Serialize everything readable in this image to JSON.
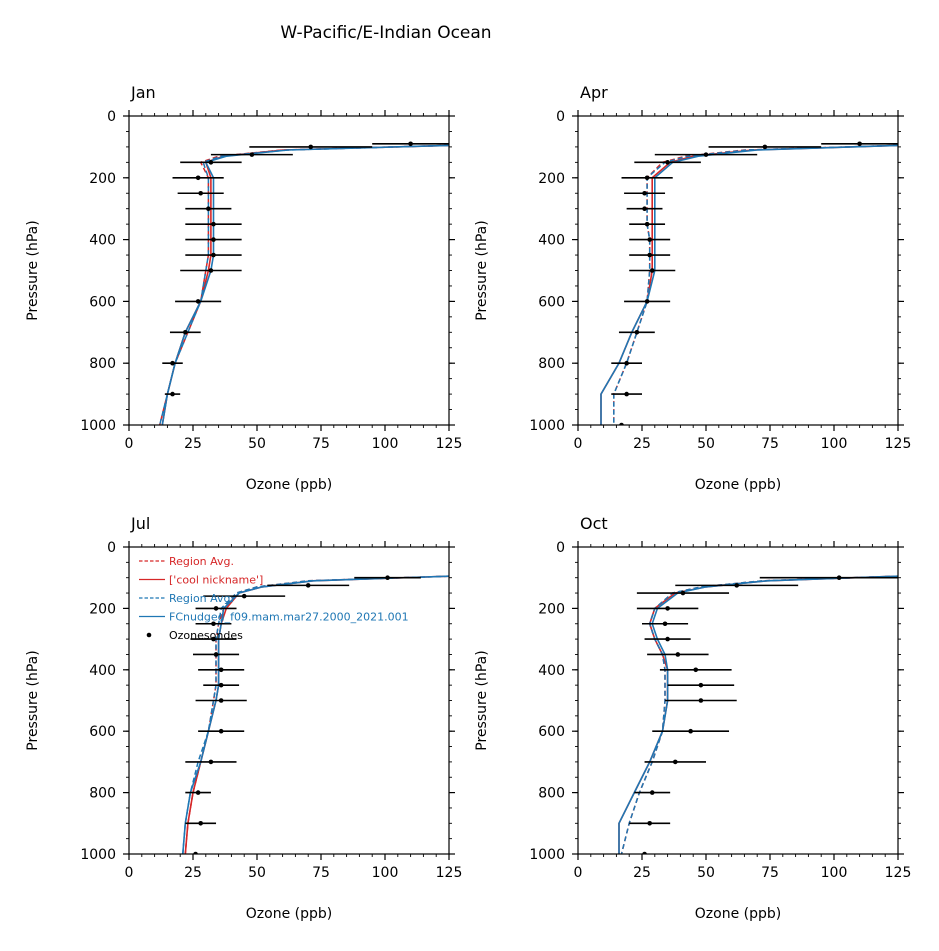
{
  "figure": {
    "title": "W-Pacific/E-Indian Ocean"
  },
  "colors": {
    "red": "#d62728",
    "blue": "#1f77b4",
    "black": "#000000"
  },
  "chart_data": [
    {
      "type": "line",
      "panel": "Jan",
      "title": "Jan",
      "xlabel": "Ozone (ppb)",
      "ylabel": "Pressure (hPa)",
      "xlim": [
        0,
        125
      ],
      "ylim": [
        1000,
        0
      ],
      "xticks": [
        "0",
        "25",
        "50",
        "75",
        "100",
        "125"
      ],
      "yticks": [
        "0",
        "200",
        "400",
        "600",
        "800",
        "1000"
      ],
      "series": [
        {
          "key": "red_dashed",
          "y": [
            95,
            110,
            130,
            150,
            200,
            250,
            300,
            350,
            400,
            450,
            500,
            600,
            700,
            800,
            900,
            1000
          ],
          "x": [
            125,
            60,
            35,
            28,
            31,
            31,
            31,
            31,
            31,
            31,
            30,
            28,
            23,
            18,
            15,
            12
          ]
        },
        {
          "key": "red_solid",
          "y": [
            95,
            110,
            130,
            150,
            200,
            250,
            300,
            350,
            400,
            450,
            500,
            600,
            700,
            800,
            900,
            1000
          ],
          "x": [
            125,
            60,
            37,
            30,
            32,
            32,
            32,
            32,
            32,
            32,
            31,
            28,
            22,
            18,
            15,
            13
          ]
        },
        {
          "key": "blue_dashed",
          "y": [
            95,
            110,
            130,
            150,
            200,
            250,
            300,
            350,
            400,
            450,
            500,
            600,
            700,
            800,
            900,
            1000
          ],
          "x": [
            125,
            62,
            36,
            29,
            31,
            31,
            31,
            31,
            31,
            31,
            30,
            28,
            23,
            18,
            15,
            12
          ]
        },
        {
          "key": "blue_solid",
          "y": [
            95,
            110,
            130,
            150,
            200,
            250,
            300,
            350,
            400,
            450,
            500,
            600,
            700,
            800,
            900,
            1000
          ],
          "x": [
            125,
            62,
            38,
            30,
            33,
            33,
            33,
            33,
            33,
            33,
            32,
            28,
            22,
            18,
            15,
            13
          ]
        }
      ],
      "ozonesondes": {
        "y": [
          90,
          100,
          125,
          150,
          200,
          250,
          300,
          350,
          400,
          450,
          500,
          600,
          700,
          800,
          900
        ],
        "x": [
          110,
          71,
          48,
          32,
          27,
          28,
          31,
          33,
          33,
          33,
          32,
          27,
          22,
          17,
          17
        ],
        "err": [
          15,
          24,
          16,
          12,
          10,
          9,
          9,
          11,
          11,
          11,
          12,
          9,
          6,
          4,
          3
        ]
      }
    },
    {
      "type": "line",
      "panel": "Apr",
      "title": "Apr",
      "xlabel": "Ozone (ppb)",
      "ylabel": "Pressure (hPa)",
      "xlim": [
        0,
        125
      ],
      "ylim": [
        1000,
        0
      ],
      "xticks": [
        "0",
        "25",
        "50",
        "75",
        "100",
        "125"
      ],
      "yticks": [
        "0",
        "200",
        "400",
        "600",
        "800",
        "1000"
      ],
      "series": [
        {
          "key": "red_dashed",
          "y": [
            95,
            110,
            130,
            150,
            200,
            250,
            300,
            350,
            400,
            450,
            500,
            600,
            700,
            800,
            900,
            1000
          ],
          "x": [
            125,
            65,
            42,
            33,
            27,
            27,
            27,
            27,
            28,
            28,
            28,
            27,
            23,
            19,
            14,
            14
          ]
        },
        {
          "key": "red_solid",
          "y": [
            95,
            110,
            130,
            150,
            200,
            250,
            300,
            350,
            400,
            450,
            500,
            600,
            700,
            800,
            900,
            1000
          ],
          "x": [
            125,
            68,
            45,
            36,
            29,
            29,
            29,
            29,
            29,
            29,
            29,
            27,
            21,
            16,
            9,
            9
          ]
        },
        {
          "key": "blue_dashed",
          "y": [
            95,
            110,
            130,
            150,
            200,
            250,
            300,
            350,
            400,
            450,
            500,
            600,
            700,
            800,
            900,
            1000
          ],
          "x": [
            125,
            66,
            43,
            34,
            27,
            27,
            27,
            27,
            28,
            28,
            28,
            27,
            23,
            19,
            14,
            14
          ]
        },
        {
          "key": "blue_solid",
          "y": [
            95,
            110,
            130,
            150,
            200,
            250,
            300,
            350,
            400,
            450,
            500,
            600,
            700,
            800,
            900,
            1000
          ],
          "x": [
            125,
            70,
            47,
            37,
            30,
            30,
            30,
            30,
            30,
            30,
            30,
            27,
            21,
            16,
            9,
            9
          ]
        }
      ],
      "ozonesondes": {
        "y": [
          90,
          100,
          125,
          150,
          200,
          250,
          300,
          350,
          400,
          450,
          500,
          600,
          700,
          800,
          900,
          1000
        ],
        "x": [
          110,
          73,
          50,
          35,
          27,
          26,
          26,
          27,
          28,
          28,
          29,
          27,
          23,
          19,
          19,
          17
        ],
        "err": [
          15,
          22,
          20,
          13,
          10,
          8,
          7,
          7,
          8,
          8,
          9,
          9,
          7,
          6,
          6,
          0
        ]
      }
    },
    {
      "type": "line",
      "panel": "Jul",
      "title": "Jul",
      "xlabel": "Ozone (ppb)",
      "ylabel": "Pressure (hPa)",
      "xlim": [
        0,
        125
      ],
      "ylim": [
        1000,
        0
      ],
      "xticks": [
        "0",
        "25",
        "50",
        "75",
        "100",
        "125"
      ],
      "yticks": [
        "0",
        "200",
        "400",
        "600",
        "800",
        "1000"
      ],
      "series": [
        {
          "key": "red_dashed",
          "y": [
            95,
            110,
            130,
            150,
            200,
            250,
            300,
            350,
            400,
            450,
            500,
            600,
            700,
            800,
            900,
            1000
          ],
          "x": [
            125,
            70,
            50,
            42,
            37,
            35,
            34,
            34,
            34,
            34,
            33,
            31,
            28,
            25,
            23,
            22
          ]
        },
        {
          "key": "red_solid",
          "y": [
            95,
            110,
            130,
            150,
            200,
            250,
            300,
            350,
            400,
            450,
            500,
            600,
            700,
            800,
            900,
            1000
          ],
          "x": [
            125,
            72,
            52,
            43,
            38,
            36,
            35,
            35,
            35,
            35,
            34,
            31,
            28,
            25,
            23,
            22
          ]
        },
        {
          "key": "blue_dashed",
          "y": [
            95,
            110,
            130,
            150,
            200,
            250,
            300,
            350,
            400,
            450,
            500,
            600,
            700,
            800,
            900,
            1000
          ],
          "x": [
            125,
            70,
            50,
            42,
            36,
            35,
            34,
            34,
            34,
            34,
            33,
            31,
            27,
            24,
            22,
            21
          ]
        },
        {
          "key": "blue_solid",
          "y": [
            95,
            110,
            130,
            150,
            200,
            250,
            300,
            350,
            400,
            450,
            500,
            600,
            700,
            800,
            900,
            1000
          ],
          "x": [
            125,
            72,
            52,
            43,
            37,
            36,
            35,
            35,
            35,
            35,
            34,
            31,
            28,
            24,
            22,
            21
          ]
        }
      ],
      "ozonesondes": {
        "y": [
          100,
          125,
          160,
          200,
          250,
          300,
          350,
          400,
          450,
          500,
          600,
          700,
          800,
          900,
          1000
        ],
        "x": [
          101,
          70,
          45,
          34,
          33,
          33,
          34,
          36,
          36,
          36,
          36,
          32,
          27,
          28,
          26
        ],
        "err": [
          13,
          16,
          16,
          8,
          7,
          9,
          9,
          9,
          7,
          10,
          9,
          10,
          5,
          6,
          0
        ]
      }
    },
    {
      "type": "line",
      "panel": "Oct",
      "title": "Oct",
      "xlabel": "Ozone (ppb)",
      "ylabel": "Pressure (hPa)",
      "xlim": [
        0,
        125
      ],
      "ylim": [
        1000,
        0
      ],
      "xticks": [
        "0",
        "25",
        "50",
        "75",
        "100",
        "125"
      ],
      "yticks": [
        "0",
        "200",
        "400",
        "600",
        "800",
        "1000"
      ],
      "series": [
        {
          "key": "red_dashed",
          "y": [
            95,
            110,
            130,
            150,
            200,
            250,
            300,
            350,
            400,
            450,
            500,
            600,
            700,
            800,
            900,
            1000
          ],
          "x": [
            125,
            72,
            48,
            37,
            30,
            28,
            30,
            33,
            34,
            34,
            34,
            33,
            29,
            24,
            20,
            17
          ]
        },
        {
          "key": "red_solid",
          "y": [
            95,
            110,
            130,
            150,
            200,
            250,
            300,
            350,
            400,
            450,
            500,
            600,
            700,
            800,
            900,
            1000
          ],
          "x": [
            125,
            74,
            50,
            38,
            30,
            28,
            30,
            33,
            35,
            35,
            35,
            33,
            28,
            22,
            16,
            16
          ]
        },
        {
          "key": "blue_dashed",
          "y": [
            95,
            110,
            130,
            150,
            200,
            250,
            300,
            350,
            400,
            450,
            500,
            600,
            700,
            800,
            900,
            1000
          ],
          "x": [
            125,
            72,
            48,
            37,
            30,
            28,
            30,
            33,
            34,
            34,
            34,
            33,
            29,
            24,
            20,
            17
          ]
        },
        {
          "key": "blue_solid",
          "y": [
            95,
            110,
            130,
            150,
            200,
            250,
            300,
            350,
            400,
            450,
            500,
            600,
            700,
            800,
            900,
            1000
          ],
          "x": [
            125,
            74,
            50,
            39,
            31,
            29,
            31,
            34,
            35,
            35,
            35,
            33,
            28,
            22,
            16,
            16
          ]
        }
      ],
      "ozonesondes": {
        "y": [
          100,
          125,
          150,
          200,
          250,
          300,
          350,
          400,
          450,
          500,
          600,
          700,
          800,
          900,
          1000
        ],
        "x": [
          102,
          62,
          41,
          35,
          34,
          35,
          39,
          46,
          48,
          48,
          44,
          38,
          29,
          28,
          26
        ],
        "err": [
          31,
          24,
          18,
          12,
          9,
          9,
          12,
          14,
          13,
          14,
          15,
          12,
          7,
          8,
          0
        ]
      }
    }
  ],
  "legend": {
    "panel": "Jul",
    "entries": [
      {
        "key": "red_dashed",
        "label": "Region Avg."
      },
      {
        "key": "red_solid",
        "label": "['cool nickname']"
      },
      {
        "key": "blue_dashed",
        "label": "Region Avg."
      },
      {
        "key": "blue_solid",
        "label": "FCnudged_f09.mam.mar27.2000_2021.001"
      },
      {
        "key": "ozonesondes",
        "label": "Ozonesondes"
      }
    ]
  }
}
